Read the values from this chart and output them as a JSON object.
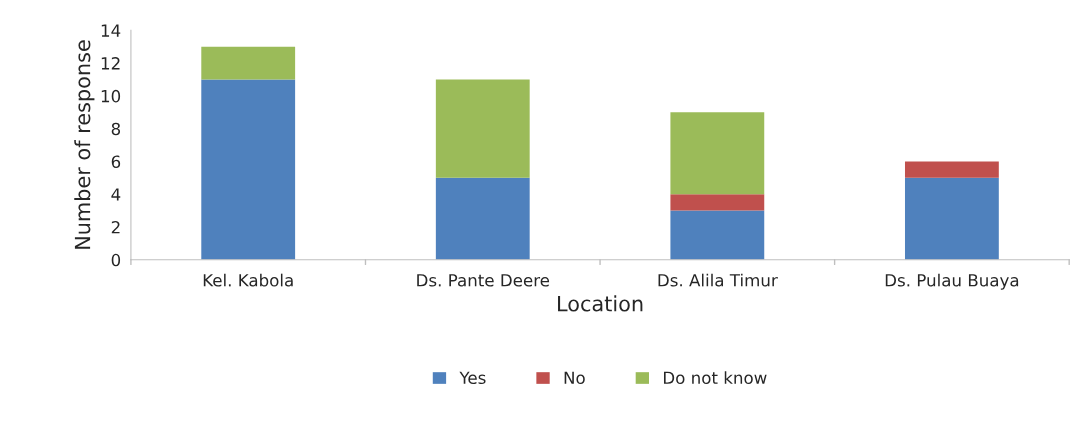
{
  "chart_data": {
    "type": "bar",
    "stacked": true,
    "xlabel": "Location",
    "ylabel": "Number of response",
    "categories": [
      "Kel. Kabola",
      "Ds. Pante Deere",
      "Ds. Alila Timur",
      "Ds. Pulau Buaya"
    ],
    "series": [
      {
        "name": "Yes",
        "color": "#4f81bd",
        "values": [
          11,
          5,
          3,
          5
        ]
      },
      {
        "name": "No",
        "color": "#c0504d",
        "values": [
          0,
          0,
          1,
          1
        ]
      },
      {
        "name": "Do not know",
        "color": "#9bbb59",
        "values": [
          2,
          6,
          5,
          0
        ]
      }
    ],
    "ylim": [
      0,
      14
    ],
    "yticks": [
      0,
      2,
      4,
      6,
      8,
      10,
      12,
      14
    ],
    "grid": false,
    "legend": "bottom"
  }
}
